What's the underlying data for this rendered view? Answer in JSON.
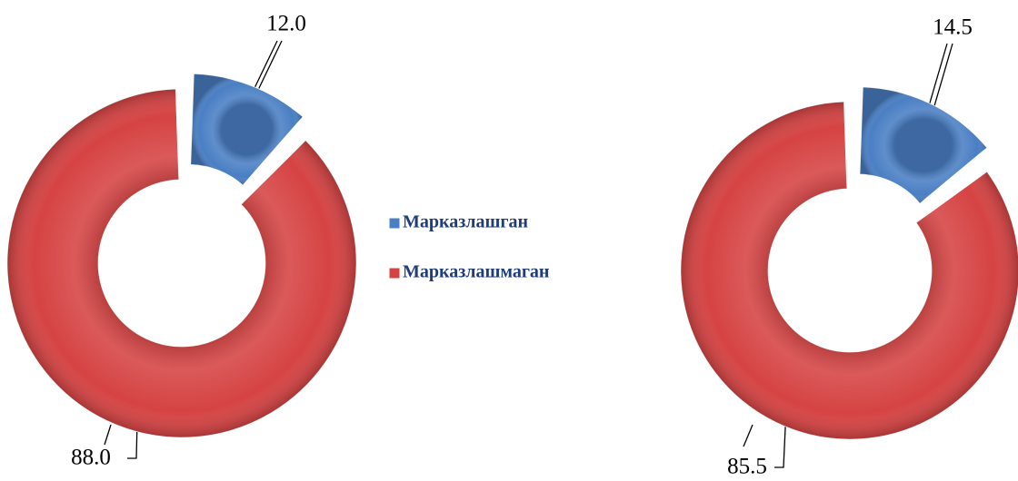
{
  "chart_data": [
    {
      "type": "donut",
      "categories": [
        "Марказлашган",
        "Марказлашмаган"
      ],
      "values": [
        12,
        88
      ],
      "value_labels": [
        "12.0",
        "88.0"
      ],
      "colors": [
        "#4a7fc4",
        "#d64343"
      ]
    },
    {
      "type": "donut",
      "values": [
        14.5,
        85.5
      ],
      "value_labels": [
        "14.5",
        "85.5"
      ],
      "colors": [
        "#4a7fc4",
        "#d64343"
      ]
    }
  ]
}
